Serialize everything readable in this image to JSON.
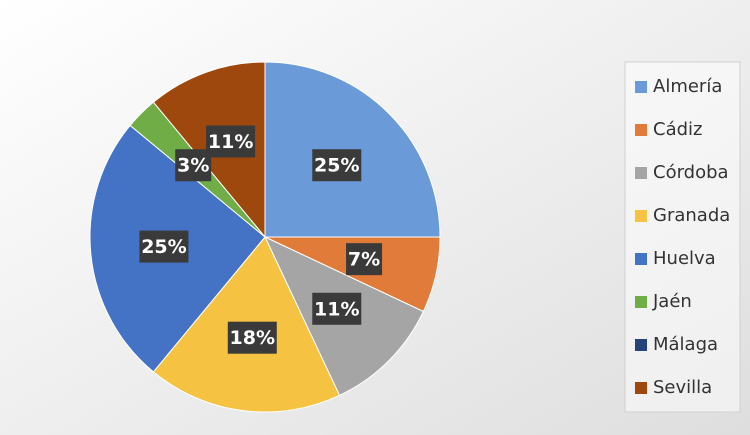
{
  "chart_data": {
    "type": "pie",
    "categories": [
      "Almería",
      "Cádiz",
      "Córdoba",
      "Granada",
      "Huelva",
      "Jaén",
      "Málaga",
      "Sevilla"
    ],
    "values": [
      25,
      7,
      11,
      18,
      25,
      3,
      0,
      11
    ],
    "value_labels": [
      "25%",
      "7%",
      "11%",
      "18%",
      "25%",
      "3%",
      null,
      "11%"
    ],
    "colors": [
      "#6a9bd8",
      "#e07b39",
      "#a5a5a5",
      "#f5c242",
      "#4472c4",
      "#70ad47",
      "#264478",
      "#9e480e"
    ],
    "legend": "right"
  }
}
